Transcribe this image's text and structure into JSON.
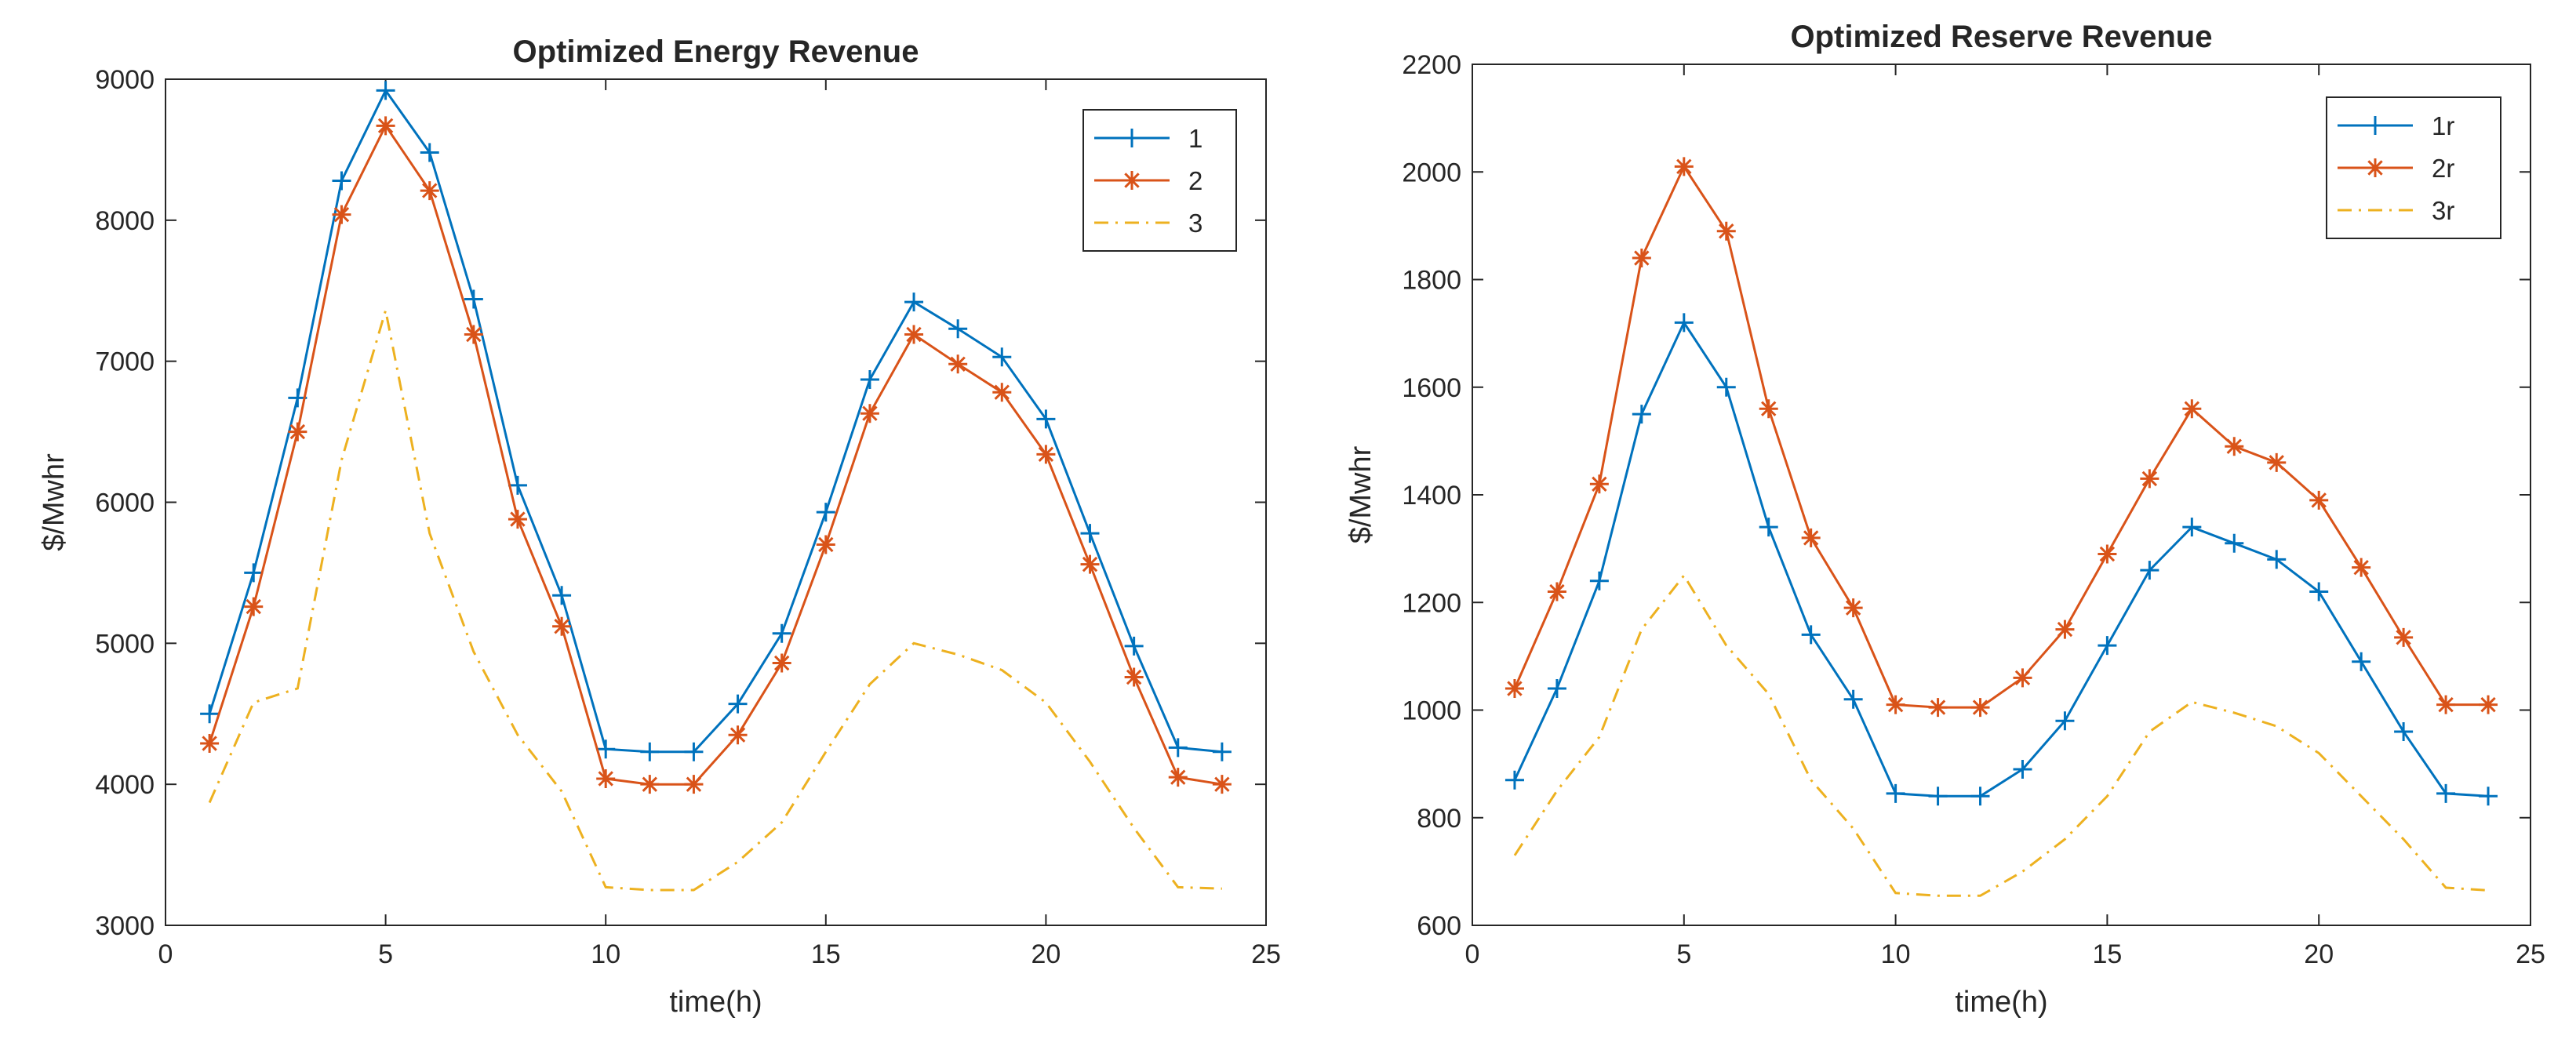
{
  "chart_data": [
    {
      "type": "line",
      "title": "Optimized Energy Revenue",
      "xlabel": "time(h)",
      "ylabel": "$/Mwhr",
      "xlim": [
        0,
        25
      ],
      "ylim": [
        3000,
        9000
      ],
      "xticks": [
        0,
        5,
        10,
        15,
        20,
        25
      ],
      "yticks": [
        3000,
        4000,
        5000,
        6000,
        7000,
        8000,
        9000
      ],
      "legend_position": "top-right",
      "x": [
        1,
        2,
        3,
        4,
        5,
        6,
        7,
        8,
        9,
        10,
        11,
        12,
        13,
        14,
        15,
        16,
        17,
        18,
        19,
        20,
        21,
        22,
        23,
        24
      ],
      "series": [
        {
          "name": "1",
          "color": "#0072bd",
          "marker": "plus",
          "line": "solid",
          "values": [
            4500,
            5500,
            6740,
            8280,
            8920,
            8480,
            7440,
            6120,
            5340,
            4250,
            4230,
            4230,
            4570,
            5070,
            5930,
            6870,
            7420,
            7230,
            7030,
            6590,
            5780,
            4980,
            4260,
            4230
          ]
        },
        {
          "name": "2",
          "color": "#d95319",
          "marker": "asterisk",
          "line": "solid",
          "values": [
            4290,
            5260,
            6500,
            8040,
            8670,
            8210,
            7190,
            5880,
            5120,
            4040,
            4000,
            4000,
            4350,
            4860,
            5700,
            6630,
            7190,
            6980,
            6780,
            6340,
            5560,
            4760,
            4050,
            4000
          ]
        },
        {
          "name": "3",
          "color": "#edb120",
          "marker": "none",
          "line": "dashdot",
          "values": [
            3870,
            4580,
            4680,
            6300,
            7360,
            5780,
            4940,
            4350,
            3950,
            3270,
            3250,
            3250,
            3450,
            3730,
            4230,
            4710,
            5000,
            4920,
            4810,
            4580,
            4160,
            3690,
            3270,
            3260
          ]
        }
      ]
    },
    {
      "type": "line",
      "title": "Optimized Reserve Revenue",
      "xlabel": "time(h)",
      "ylabel": "$/Mwhr",
      "xlim": [
        0,
        25
      ],
      "ylim": [
        600,
        2200
      ],
      "xticks": [
        0,
        5,
        10,
        15,
        20,
        25
      ],
      "yticks": [
        600,
        800,
        1000,
        1200,
        1400,
        1600,
        1800,
        2000,
        2200
      ],
      "legend_position": "top-right",
      "x": [
        1,
        2,
        3,
        4,
        5,
        6,
        7,
        8,
        9,
        10,
        11,
        12,
        13,
        14,
        15,
        16,
        17,
        18,
        19,
        20,
        21,
        22,
        23,
        24
      ],
      "series": [
        {
          "name": "1r",
          "color": "#0072bd",
          "marker": "plus",
          "line": "solid",
          "values": [
            870,
            1040,
            1240,
            1550,
            1720,
            1600,
            1340,
            1140,
            1020,
            845,
            840,
            840,
            890,
            980,
            1120,
            1260,
            1340,
            1310,
            1280,
            1220,
            1090,
            960,
            845,
            840
          ]
        },
        {
          "name": "2r",
          "color": "#d95319",
          "marker": "asterisk",
          "line": "solid",
          "values": [
            1040,
            1220,
            1420,
            1840,
            2010,
            1890,
            1560,
            1320,
            1190,
            1010,
            1005,
            1005,
            1060,
            1150,
            1290,
            1430,
            1560,
            1490,
            1460,
            1390,
            1265,
            1135,
            1010,
            1010
          ]
        },
        {
          "name": "3r",
          "color": "#edb120",
          "marker": "none",
          "line": "dashdot",
          "values": [
            730,
            850,
            950,
            1150,
            1250,
            1120,
            1030,
            870,
            780,
            660,
            655,
            655,
            700,
            760,
            840,
            960,
            1015,
            995,
            970,
            920,
            840,
            760,
            670,
            665
          ]
        }
      ]
    }
  ]
}
